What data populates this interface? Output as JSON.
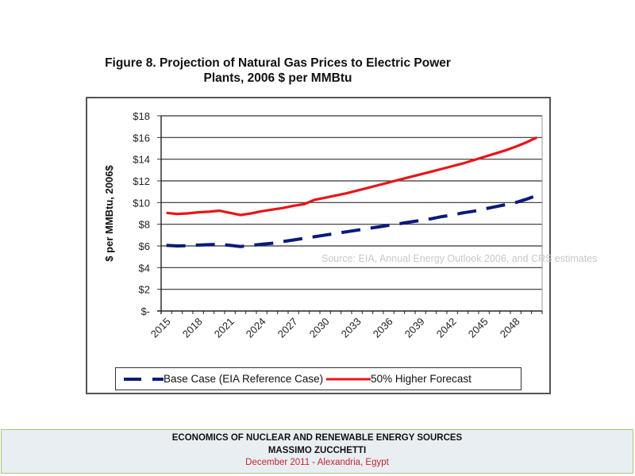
{
  "chart_data": {
    "type": "line",
    "title": "Figure 8. Projection of Natural Gas Prices to Electric Power Plants, 2006 $ per MMBtu",
    "title_lines": [
      "Figure 8. Projection of Natural Gas Prices to Electric Power",
      "Plants, 2006 $ per MMBtu"
    ],
    "xlabel": "",
    "ylabel": "$ per MMBtu, 2006$",
    "ylim": [
      0,
      18
    ],
    "yticks": [
      0,
      2,
      4,
      6,
      8,
      10,
      12,
      14,
      16,
      18
    ],
    "ytick_labels": [
      "$-",
      "$2",
      "$4",
      "$6",
      "$8",
      "$10",
      "$12",
      "$14",
      "$16",
      "$18"
    ],
    "x": [
      2015,
      2016,
      2017,
      2018,
      2019,
      2020,
      2021,
      2022,
      2023,
      2024,
      2025,
      2026,
      2027,
      2028,
      2029,
      2030,
      2031,
      2032,
      2033,
      2034,
      2035,
      2036,
      2037,
      2038,
      2039,
      2040,
      2041,
      2042,
      2043,
      2044,
      2045,
      2046,
      2047,
      2048,
      2049,
      2050
    ],
    "xtick_labels": [
      "2015",
      "2018",
      "2021",
      "2024",
      "2027",
      "2030",
      "2033",
      "2036",
      "2039",
      "2042",
      "2045",
      "2048"
    ],
    "grid": "horizontal",
    "legend_position": "bottom",
    "series": [
      {
        "name": "Base Case (EIA Reference Case)",
        "color": "#0a1a7a",
        "style": "dashed",
        "values": [
          6.05,
          6.0,
          6.02,
          6.08,
          6.12,
          6.15,
          6.05,
          5.95,
          6.05,
          6.15,
          6.25,
          6.4,
          6.55,
          6.7,
          6.85,
          7.0,
          7.15,
          7.3,
          7.45,
          7.6,
          7.75,
          7.9,
          8.05,
          8.2,
          8.35,
          8.5,
          8.7,
          8.85,
          9.05,
          9.2,
          9.4,
          9.6,
          9.8,
          10.0,
          10.3,
          10.65
        ]
      },
      {
        "name": "50% Higher Forecast",
        "color": "#e8141a",
        "style": "solid",
        "values": [
          9.05,
          8.95,
          9.0,
          9.1,
          9.15,
          9.25,
          9.05,
          8.85,
          9.0,
          9.2,
          9.35,
          9.5,
          9.7,
          9.85,
          10.25,
          10.45,
          10.65,
          10.85,
          11.1,
          11.35,
          11.6,
          11.85,
          12.1,
          12.35,
          12.6,
          12.85,
          13.1,
          13.35,
          13.6,
          13.9,
          14.2,
          14.5,
          14.8,
          15.15,
          15.55,
          16.0
        ]
      }
    ],
    "annotation": "Source: EIA, Annual Energy Outlook 2006, and CRS estimates"
  },
  "footer": {
    "line1": "ECONOMICS OF NUCLEAR AND RENEWABLE ENERGY SOURCES",
    "line2": "MASSIMO ZUCCHETTI",
    "line3": "December 2011 - Alexandria, Egypt"
  }
}
